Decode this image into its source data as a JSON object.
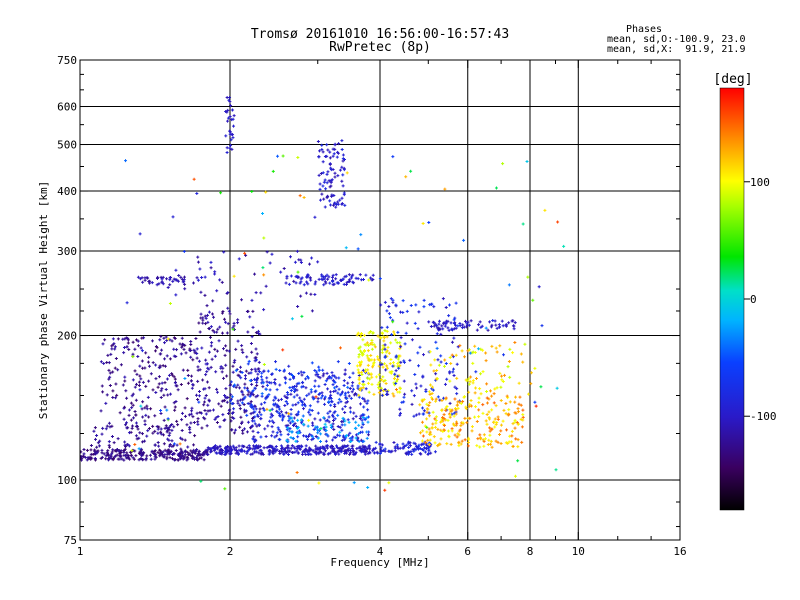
{
  "header": {
    "title_line1": "Tromsø 20161010 16:56:00-16:57:43",
    "title_line2": "RwPretec (8p)"
  },
  "stats": {
    "heading": "Phases",
    "line_o": "mean, sd,O:-100.9, 23.0",
    "line_x": "mean, sd,X:  91.9, 21.9"
  },
  "colorbar": {
    "unit_label": "[deg]",
    "ticks": [
      {
        "value": 100,
        "label": "100"
      },
      {
        "value": 0,
        "label": "0"
      },
      {
        "value": -100,
        "label": "-100"
      }
    ],
    "range": [
      -180,
      180
    ]
  },
  "chart_data": {
    "type": "scatter",
    "xscale": "log",
    "yscale": "log",
    "xlim": [
      1,
      16
    ],
    "ylim": [
      75,
      750
    ],
    "xlabel": "Frequency [MHz]",
    "ylabel": "Stationary phase Virtual Height [km]",
    "xticks": [
      {
        "value": 1,
        "label": "1"
      },
      {
        "value": 2,
        "label": "2"
      },
      {
        "value": 4,
        "label": "4"
      },
      {
        "value": 6,
        "label": "6"
      },
      {
        "value": 8,
        "label": "8"
      },
      {
        "value": 10,
        "label": "10"
      },
      {
        "value": 16,
        "label": "16"
      }
    ],
    "yticks": [
      {
        "value": 75,
        "label": "75"
      },
      {
        "value": 100,
        "label": "100"
      },
      {
        "value": 200,
        "label": "200"
      },
      {
        "value": 300,
        "label": "300"
      },
      {
        "value": 400,
        "label": "400"
      },
      {
        "value": 500,
        "label": "500"
      },
      {
        "value": 600,
        "label": "600"
      },
      {
        "value": 750,
        "label": "750"
      }
    ],
    "grid_x": [
      2,
      4,
      6,
      8,
      10
    ],
    "grid_y": [
      100,
      200,
      300,
      400,
      500,
      600
    ],
    "clusters": [
      {
        "f": [
          1.0,
          1.8
        ],
        "h": [
          110,
          116
        ],
        "phase": [
          -140,
          -115
        ],
        "n": 260
      },
      {
        "f": [
          1.8,
          3.9
        ],
        "h": [
          113,
          118
        ],
        "phase": [
          -115,
          -90
        ],
        "n": 340
      },
      {
        "f": [
          3.9,
          5.2
        ],
        "h": [
          113,
          120
        ],
        "phase": [
          -110,
          -70
        ],
        "n": 90
      },
      {
        "f": [
          1.05,
          1.7
        ],
        "h": [
          117,
          130
        ],
        "phase": [
          -135,
          -110
        ],
        "n": 80
      },
      {
        "f": [
          1.1,
          1.7
        ],
        "h": [
          125,
          200
        ],
        "phase": [
          -140,
          -110
        ],
        "n": 240
      },
      {
        "f": [
          1.7,
          2.3
        ],
        "h": [
          125,
          225
        ],
        "phase": [
          -135,
          -105
        ],
        "n": 240
      },
      {
        "f": [
          2.2,
          3.8
        ],
        "h": [
          120,
          170
        ],
        "phase": [
          -115,
          -60
        ],
        "n": 380
      },
      {
        "f": [
          2.0,
          3.5
        ],
        "h": [
          135,
          180
        ],
        "phase": [
          -90,
          -40
        ],
        "n": 90
      },
      {
        "f": [
          3.6,
          4.4
        ],
        "h": [
          150,
          205
        ],
        "phase": [
          85,
          120
        ],
        "n": 170
      },
      {
        "f": [
          4.0,
          5.8
        ],
        "h": [
          135,
          240
        ],
        "phase": [
          -110,
          -60
        ],
        "n": 140
      },
      {
        "f": [
          4.8,
          7.8
        ],
        "h": [
          117,
          150
        ],
        "phase": [
          95,
          150
        ],
        "n": 240
      },
      {
        "f": [
          5.0,
          8.2
        ],
        "h": [
          150,
          195
        ],
        "phase": [
          80,
          140
        ],
        "n": 80
      },
      {
        "f": [
          5.0,
          7.5
        ],
        "h": [
          205,
          215
        ],
        "phase": [
          -115,
          -90
        ],
        "n": 70
      },
      {
        "f": [
          1.3,
          1.7
        ],
        "h": [
          255,
          265
        ],
        "phase": [
          -125,
          -100
        ],
        "n": 40
      },
      {
        "f": [
          2.6,
          3.9
        ],
        "h": [
          255,
          268
        ],
        "phase": [
          -115,
          -85
        ],
        "n": 80
      },
      {
        "f": [
          1.5,
          3.0
        ],
        "h": [
          225,
          300
        ],
        "phase": [
          -125,
          -95
        ],
        "n": 60
      },
      {
        "f": [
          3.0,
          3.4
        ],
        "h": [
          370,
          510
        ],
        "phase": [
          -115,
          -80
        ],
        "n": 90
      },
      {
        "f": [
          1.96,
          2.04
        ],
        "h": [
          480,
          630
        ],
        "phase": [
          -110,
          -90
        ],
        "n": 30
      },
      {
        "f": [
          2.6,
          3.8
        ],
        "h": [
          120,
          135
        ],
        "phase": [
          -40,
          -10
        ],
        "n": 60
      },
      {
        "f": [
          1.2,
          9.5
        ],
        "h": [
          95,
          480
        ],
        "phase": [
          -100,
          170
        ],
        "n": 110
      }
    ]
  }
}
